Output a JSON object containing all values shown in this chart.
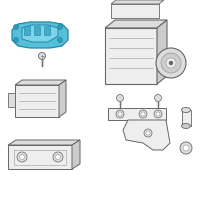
{
  "bg_color": "#ffffff",
  "fig_bg": "#ffffff",
  "outline_color": "#888888",
  "highlight_color": "#55c0d8",
  "highlight_edge": "#2288a8",
  "highlight_fill": "#7dd4e8",
  "line_color": "#aaaaaa",
  "dark_line": "#666666",
  "mid_line": "#999999",
  "face_light": "#eeeeee",
  "face_mid": "#dddddd",
  "face_dark": "#cccccc"
}
